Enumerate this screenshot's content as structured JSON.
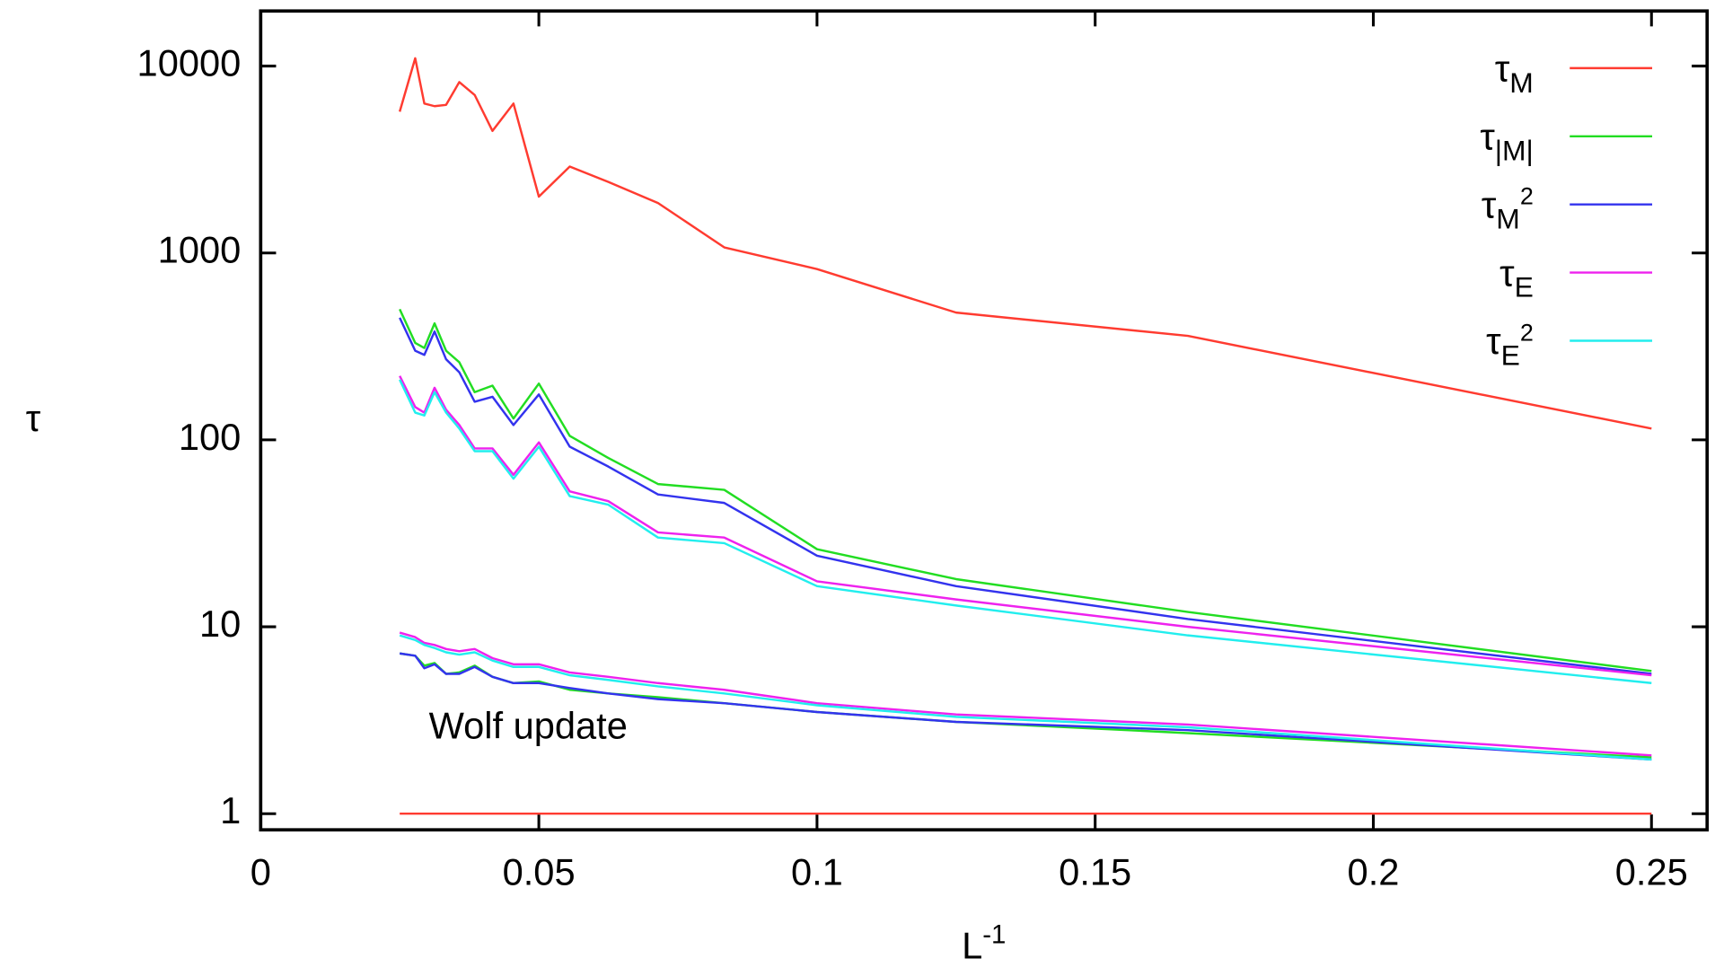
{
  "chart_data": {
    "type": "line",
    "ylabel": "τ",
    "xlabel": {
      "text": "L",
      "sup": "-1"
    },
    "annotation": "Wolf update",
    "ylog": true,
    "xlim": [
      0,
      0.26
    ],
    "ylim": [
      0.82,
      19700
    ],
    "xticks": [
      0,
      0.05,
      0.1,
      0.15,
      0.2,
      0.25
    ],
    "yticks": [
      1,
      10,
      100,
      1000,
      10000
    ],
    "legend": "upper right",
    "x": [
      0.025,
      0.02778,
      0.02941,
      0.03125,
      0.03333,
      0.03571,
      0.03846,
      0.04167,
      0.04545,
      0.05,
      0.05556,
      0.0625,
      0.07143,
      0.08333,
      0.1,
      0.125,
      0.16667,
      0.25
    ],
    "series": [
      {
        "name": "τ",
        "sub": "M",
        "color": "#ff3b30",
        "values": [
          5700,
          11000,
          6300,
          6100,
          6200,
          8200,
          7000,
          4500,
          6300,
          2000,
          2900,
          2400,
          1850,
          1070,
          820,
          480,
          360,
          115
        ]
      },
      {
        "name": "τ",
        "sub": "|M|",
        "color": "#22dd22",
        "values": [
          500,
          330,
          310,
          420,
          300,
          260,
          180,
          195,
          130,
          200,
          105,
          80,
          58,
          54,
          26,
          18,
          12,
          5.8
        ]
      },
      {
        "name": "τ",
        "sub": "M",
        "sup": "2",
        "color": "#3333ee",
        "values": [
          450,
          300,
          285,
          380,
          270,
          230,
          160,
          170,
          120,
          175,
          92,
          72,
          51,
          46,
          24,
          16.5,
          11,
          5.6
        ]
      },
      {
        "name": "τ",
        "sub": "E",
        "color": "#ee22ee",
        "values": [
          220,
          150,
          140,
          190,
          145,
          120,
          90,
          90,
          65,
          97,
          53,
          47,
          32,
          30,
          17.5,
          14,
          10,
          5.5
        ]
      },
      {
        "name": "τ",
        "sub": "E",
        "sup": "2",
        "color": "#22eeee",
        "values": [
          210,
          140,
          135,
          180,
          140,
          115,
          87,
          87,
          62,
          92,
          50,
          45,
          30,
          28,
          16.5,
          13,
          9,
          5.0
        ]
      },
      {
        "color": "#ff3b30",
        "values": [
          1,
          1,
          1,
          1,
          1,
          1,
          1,
          1,
          1,
          1,
          1,
          1,
          1,
          1,
          1,
          1,
          1,
          1
        ]
      },
      {
        "color": "#22dd22",
        "values": [
          7.2,
          7,
          6.2,
          6.4,
          5.6,
          5.7,
          6.2,
          5.4,
          5.0,
          5.1,
          4.6,
          4.4,
          4.2,
          3.9,
          3.5,
          3.1,
          2.7,
          2.0
        ]
      },
      {
        "color": "#3333ee",
        "values": [
          7.2,
          7.0,
          6.0,
          6.3,
          5.6,
          5.6,
          6.1,
          5.4,
          5.0,
          5.0,
          4.7,
          4.4,
          4.1,
          3.9,
          3.5,
          3.1,
          2.8,
          1.95
        ]
      },
      {
        "color": "#ee22ee",
        "values": [
          9.3,
          8.8,
          8.2,
          8.0,
          7.6,
          7.4,
          7.6,
          6.8,
          6.3,
          6.3,
          5.7,
          5.4,
          5.0,
          4.6,
          3.9,
          3.4,
          3.0,
          2.05
        ]
      },
      {
        "color": "#22eeee",
        "values": [
          9,
          8.5,
          8.0,
          7.7,
          7.3,
          7.1,
          7.3,
          6.6,
          6.1,
          6.1,
          5.5,
          5.2,
          4.8,
          4.4,
          3.8,
          3.3,
          2.9,
          1.95
        ]
      }
    ]
  }
}
